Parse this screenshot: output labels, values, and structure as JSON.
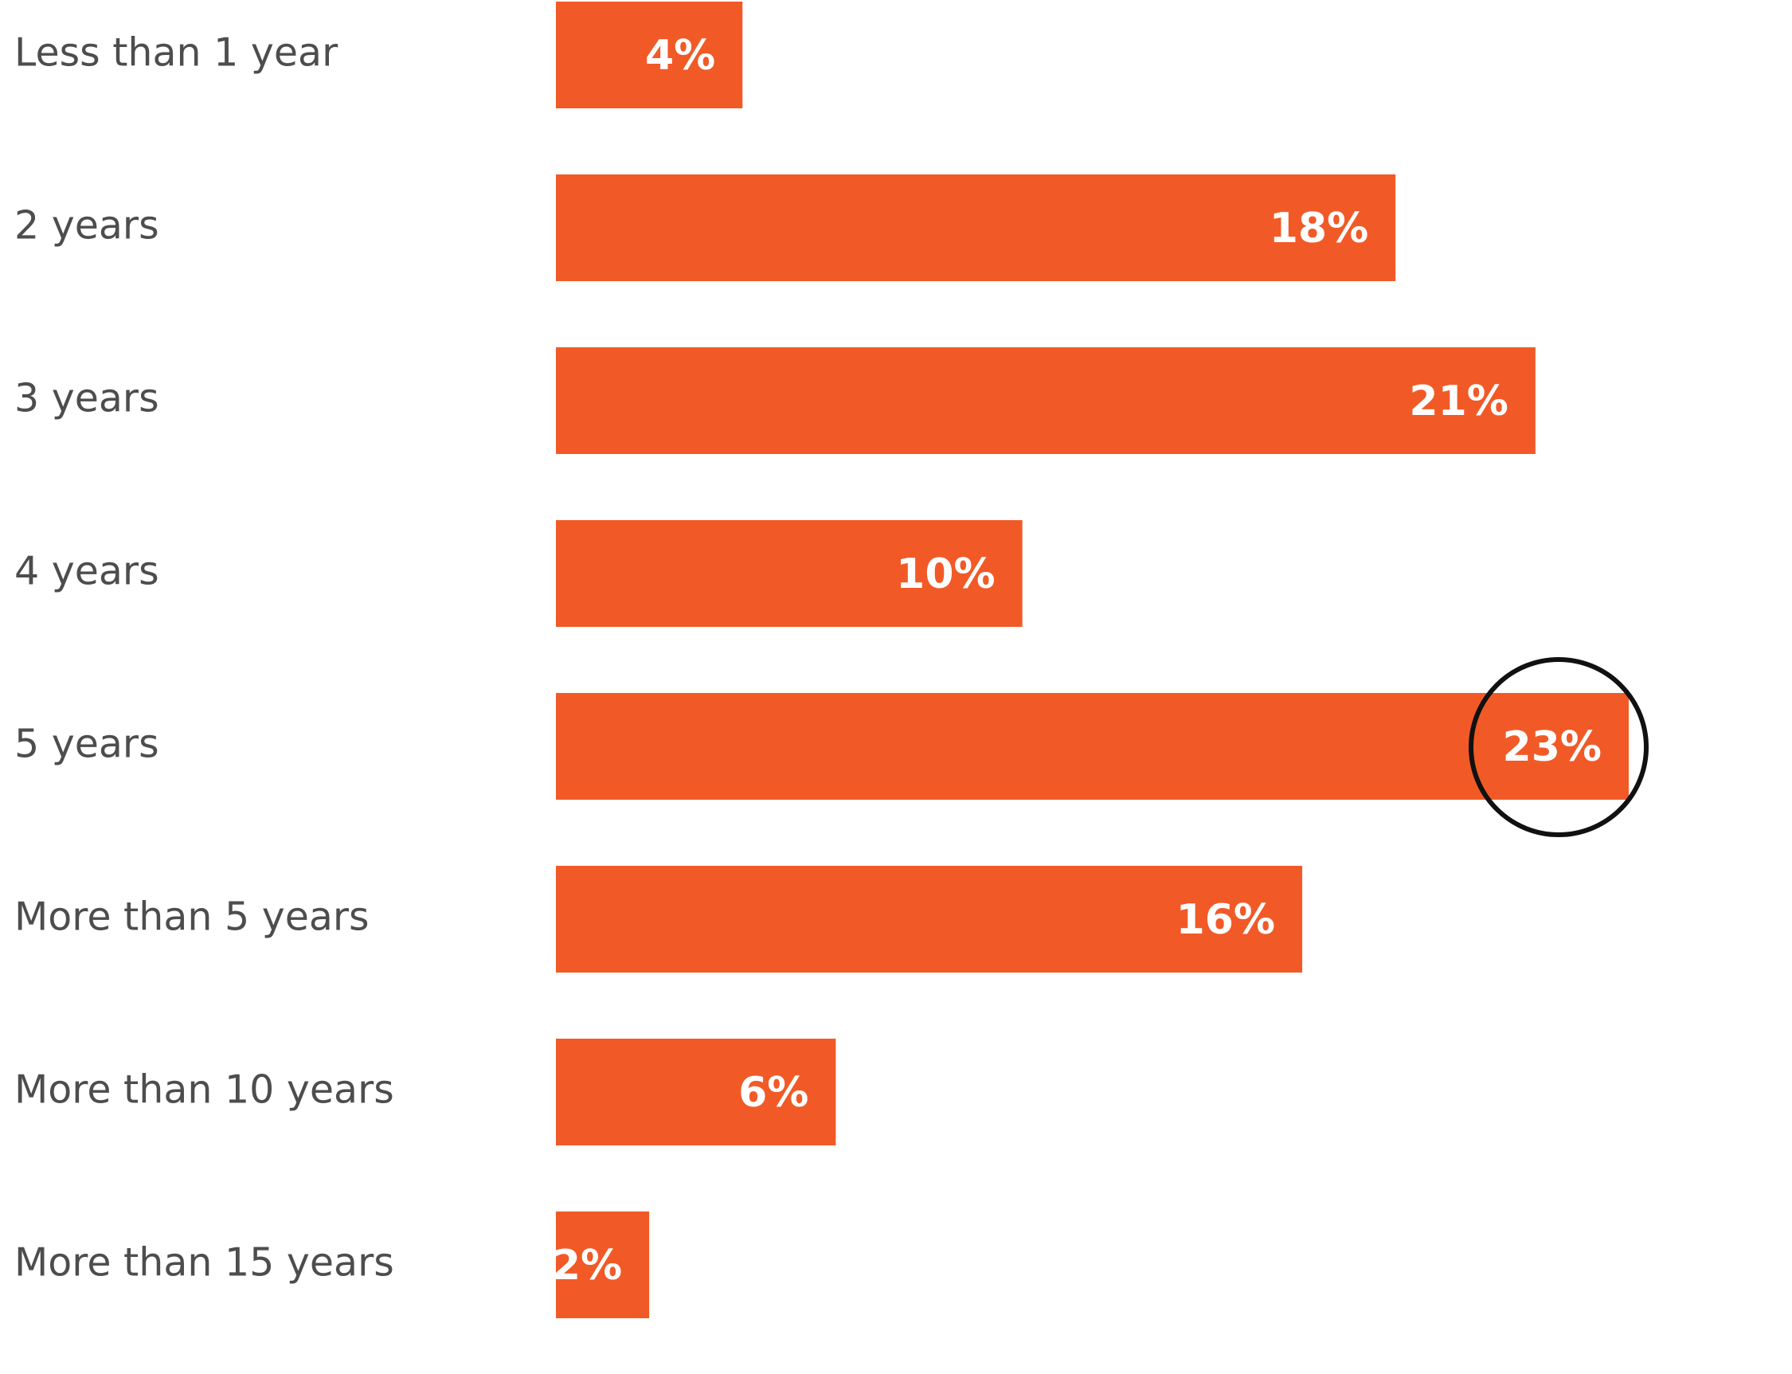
{
  "chart_data": {
    "type": "bar",
    "orientation": "horizontal",
    "categories": [
      "Less than 1 year",
      "2 years",
      "3 years",
      "4 years",
      "5 years",
      "More than 5 years",
      "More than 10 years",
      "More than 15 years"
    ],
    "values": [
      4,
      18,
      21,
      10,
      23,
      16,
      6,
      2
    ],
    "value_labels": [
      "4%",
      "18%",
      "21%",
      "10%",
      "23%",
      "16%",
      "6%",
      "2%"
    ],
    "unit": "%",
    "highlighted_category": "5 years",
    "title": "",
    "xlabel": "",
    "ylabel": "",
    "grid": false,
    "legend": "none"
  },
  "colors": {
    "bar": "#f15a27",
    "category_text": "#4d4d4d",
    "inside_value_text": "#ffffff",
    "outside_value_text": "#f15a27",
    "highlight_ring": "#111111",
    "background": "#ffffff"
  }
}
